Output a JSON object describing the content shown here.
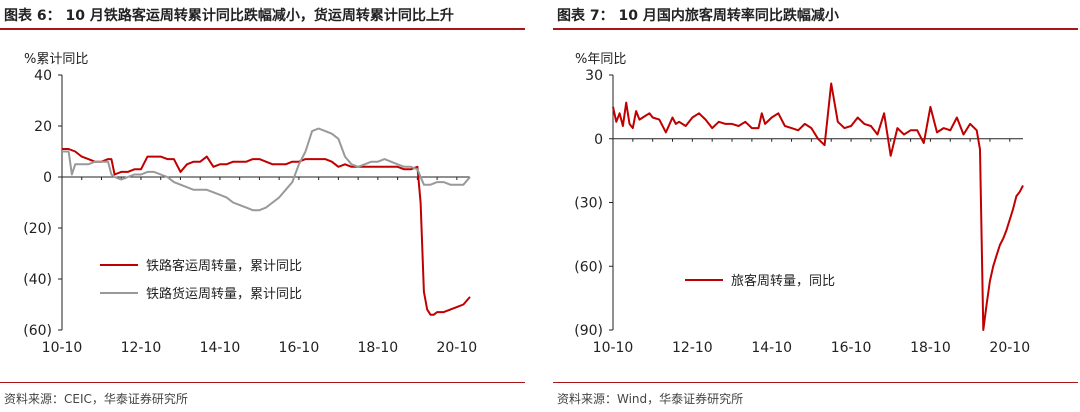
{
  "figures": [
    {
      "title": "图表 6：  10 月铁路客运周转累计同比跌幅减小，货运周转累计同比上升",
      "source": "资料来源：CEIC，华泰证券研究所",
      "chart_data": {
        "type": "line",
        "ylabel": "%累计同比",
        "ylim": [
          -60,
          40
        ],
        "yticks": [
          40,
          20,
          0,
          -20,
          -40,
          -60
        ],
        "ytick_labels": [
          "40",
          "20",
          "0",
          "(20)",
          "(40)",
          "(60)"
        ],
        "xlim": [
          0,
          124
        ],
        "xticks": [
          0,
          24,
          48,
          72,
          96,
          120
        ],
        "xtick_labels": [
          "10-10",
          "12-10",
          "14-10",
          "16-10",
          "18-10",
          "20-10"
        ],
        "grid": false,
        "legend_position": "lower-left",
        "series": [
          {
            "name": "铁路客运周转量，累计同比",
            "color": "#c00000",
            "x": [
              0,
              2,
              4,
              6,
              8,
              10,
              12,
              14,
              15,
              16,
              18,
              20,
              22,
              24,
              26,
              28,
              30,
              32,
              34,
              36,
              38,
              40,
              42,
              44,
              46,
              48,
              50,
              52,
              54,
              56,
              58,
              60,
              62,
              64,
              66,
              68,
              70,
              72,
              74,
              76,
              78,
              80,
              82,
              84,
              86,
              88,
              90,
              92,
              94,
              96,
              98,
              100,
              102,
              104,
              106,
              108,
              109,
              110,
              111,
              112,
              113,
              114,
              116,
              118,
              120,
              122,
              124
            ],
            "y": [
              11,
              11,
              10,
              8,
              7,
              6,
              6,
              7,
              7,
              1,
              2,
              2,
              3,
              3,
              8,
              8,
              8,
              7,
              7,
              2,
              5,
              6,
              6,
              8,
              4,
              5,
              5,
              6,
              6,
              6,
              7,
              7,
              6,
              5,
              5,
              5,
              6,
              6,
              7,
              7,
              7,
              7,
              6,
              4,
              5,
              4,
              4,
              4,
              4,
              4,
              4,
              4,
              4,
              3,
              3,
              4,
              -10,
              -45,
              -52,
              -54,
              -54,
              -53,
              -53,
              -52,
              -51,
              -50,
              -47
            ]
          },
          {
            "name": "铁路货运周转量，累计同比",
            "color": "#999999",
            "x": [
              0,
              2,
              3,
              4,
              6,
              8,
              10,
              12,
              14,
              15,
              16,
              18,
              20,
              22,
              24,
              26,
              28,
              30,
              32,
              34,
              36,
              38,
              40,
              42,
              44,
              46,
              48,
              50,
              52,
              54,
              56,
              58,
              60,
              62,
              64,
              66,
              68,
              70,
              72,
              74,
              76,
              78,
              80,
              82,
              84,
              86,
              88,
              90,
              92,
              94,
              96,
              98,
              100,
              102,
              104,
              106,
              108,
              110,
              112,
              114,
              116,
              118,
              120,
              122,
              124
            ],
            "y": [
              10,
              10,
              1,
              5,
              5,
              5,
              6,
              6,
              6,
              1,
              0,
              -1,
              0,
              1,
              1,
              2,
              2,
              1,
              0,
              -2,
              -3,
              -4,
              -5,
              -5,
              -5,
              -6,
              -7,
              -8,
              -10,
              -11,
              -12,
              -13,
              -13,
              -12,
              -10,
              -8,
              -5,
              -2,
              5,
              10,
              18,
              19,
              18,
              17,
              15,
              8,
              5,
              4,
              5,
              6,
              6,
              7,
              6,
              5,
              4,
              4,
              3,
              -3,
              -3,
              -2,
              -2,
              -3,
              -3,
              -3,
              0
            ]
          }
        ]
      }
    },
    {
      "title": "图表 7：  10 月国内旅客周转率同比跌幅减小",
      "source": "资料来源：Wind，华泰证券研究所",
      "chart_data": {
        "type": "line",
        "ylabel": "%年同比",
        "ylim": [
          -90,
          30
        ],
        "yticks": [
          30,
          0,
          -30,
          -60,
          -90
        ],
        "ytick_labels": [
          "30",
          "0",
          "(30)",
          "(60)",
          "(90)"
        ],
        "xlim": [
          0,
          124
        ],
        "xticks": [
          0,
          24,
          48,
          72,
          96,
          120
        ],
        "xtick_labels": [
          "10-10",
          "12-10",
          "14-10",
          "16-10",
          "18-10",
          "20-10"
        ],
        "grid": false,
        "legend_position": "center",
        "series": [
          {
            "name": "旅客周转量，同比",
            "color": "#c00000",
            "x": [
              0,
              1,
              2,
              3,
              4,
              5,
              6,
              7,
              8,
              9,
              10,
              11,
              12,
              14,
              16,
              18,
              19,
              20,
              22,
              24,
              26,
              28,
              30,
              32,
              34,
              36,
              38,
              40,
              42,
              44,
              45,
              46,
              48,
              50,
              52,
              54,
              56,
              58,
              60,
              62,
              64,
              66,
              68,
              70,
              72,
              74,
              76,
              78,
              80,
              82,
              84,
              86,
              88,
              90,
              92,
              94,
              96,
              98,
              100,
              102,
              104,
              106,
              108,
              110,
              111,
              112,
              113,
              114,
              115,
              116,
              117,
              118,
              119,
              120,
              121,
              122,
              123,
              124
            ],
            "y": [
              15,
              8,
              12,
              6,
              17,
              7,
              5,
              13,
              9,
              10,
              11,
              12,
              10,
              9,
              3,
              10,
              7,
              8,
              6,
              10,
              12,
              9,
              5,
              8,
              7,
              7,
              6,
              8,
              5,
              5,
              12,
              7,
              10,
              12,
              6,
              5,
              4,
              7,
              5,
              0,
              -3,
              26,
              8,
              5,
              6,
              10,
              7,
              6,
              2,
              12,
              -8,
              5,
              2,
              4,
              4,
              -2,
              15,
              3,
              5,
              4,
              10,
              2,
              7,
              4,
              -5,
              -90,
              -78,
              -67,
              -60,
              -55,
              -50,
              -47,
              -43,
              -38,
              -33,
              -27,
              -25,
              -22
            ]
          }
        ]
      }
    }
  ]
}
